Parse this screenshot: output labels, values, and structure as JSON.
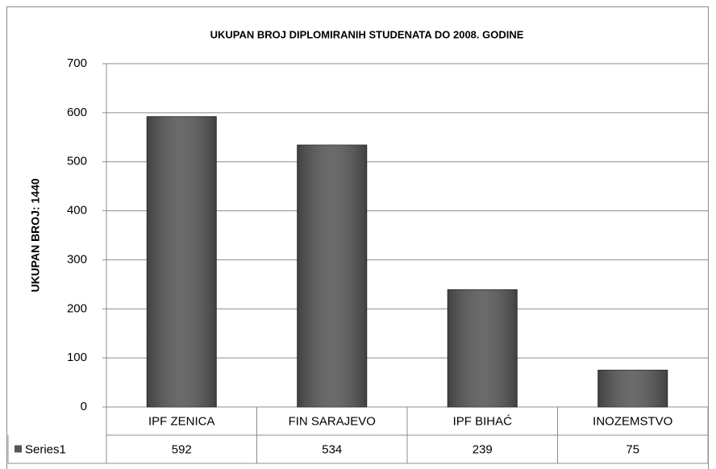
{
  "chart_data": {
    "type": "bar",
    "title": "UKUPAN BROJ DIPLOMIRANIH STUDENATA DO 2008. GODINE",
    "y_label": "UKUPAN BROJ: 1440",
    "categories": [
      "IPF ZENICA",
      "FIN SARAJEVO",
      "IPF BIHAĆ",
      "INOZEMSTVO"
    ],
    "series": [
      {
        "name": "Series1",
        "color": "#575757",
        "values": [
          592,
          534,
          239,
          75
        ]
      }
    ],
    "ylim": [
      0,
      700
    ],
    "yticks": [
      0,
      100,
      200,
      300,
      400,
      500,
      600,
      700
    ],
    "grid": true
  }
}
